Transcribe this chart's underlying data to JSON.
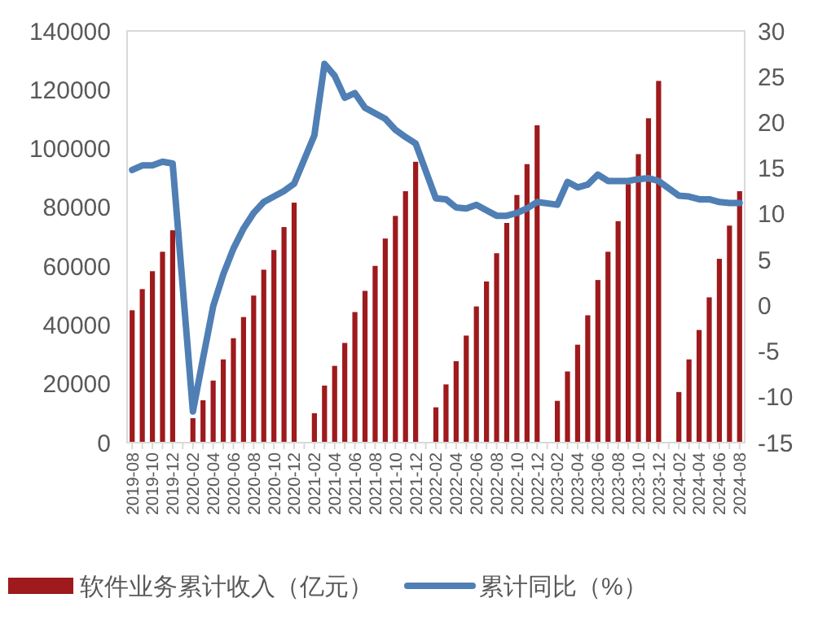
{
  "chart_data": {
    "type": "bar",
    "categories": [
      "2019-08",
      null,
      "2019-10",
      null,
      "2019-12",
      null,
      "2020-02",
      null,
      "2020-04",
      null,
      "2020-06",
      null,
      "2020-08",
      null,
      "2020-10",
      null,
      "2020-12",
      null,
      "2021-02",
      null,
      "2021-04",
      null,
      "2021-06",
      null,
      "2021-08",
      null,
      "2021-10",
      null,
      "2021-12",
      null,
      "2022-02",
      null,
      "2022-04",
      null,
      "2022-06",
      null,
      "2022-08",
      null,
      "2022-10",
      null,
      "2022-12",
      null,
      "2023-02",
      null,
      "2023-04",
      null,
      "2023-06",
      null,
      "2023-08",
      null,
      "2023-10",
      null,
      "2023-12",
      null,
      "2024-02",
      null,
      "2024-04",
      null,
      "2024-06",
      null,
      "2024-08"
    ],
    "series": [
      {
        "name": "软件业务累计收入（亿元）",
        "color": "#9e1a1d",
        "values": [
          45000,
          52200,
          58300,
          64900,
          72200,
          null,
          8300,
          14400,
          21100,
          28300,
          35500,
          42700,
          50000,
          58800,
          65500,
          73300,
          81600,
          null,
          10000,
          19400,
          26100,
          33900,
          44400,
          51600,
          60100,
          69400,
          77100,
          85500,
          95500,
          null,
          12000,
          19800,
          27700,
          36400,
          46300,
          54800,
          64400,
          74700,
          84200,
          94700,
          107900,
          null,
          14200,
          24200,
          33300,
          43300,
          55300,
          64900,
          75300,
          87900,
          98100,
          110300,
          123000,
          null,
          17200,
          28300,
          38300,
          49400,
          62500,
          73800,
          85500
        ]
      },
      {
        "name": "累计同比（%）",
        "type": "line",
        "axis": "y2",
        "color": "#4f7fb4",
        "values": [
          14.8,
          15.3,
          15.3,
          15.7,
          15.5,
          null,
          -11.6,
          -5.8,
          -0.1,
          3.4,
          6.2,
          8.4,
          10.1,
          11.3,
          11.9,
          12.5,
          13.3,
          null,
          18.6,
          26.4,
          25.1,
          22.7,
          23.2,
          21.6,
          21.0,
          20.4,
          19.2,
          18.4,
          17.7,
          null,
          11.7,
          11.6,
          10.7,
          10.6,
          11.0,
          10.4,
          9.8,
          9.8,
          10.1,
          10.6,
          11.3,
          null,
          11.0,
          13.5,
          12.9,
          13.2,
          14.3,
          13.6,
          13.6,
          13.6,
          13.8,
          13.9,
          13.6,
          null,
          12.0,
          11.9,
          11.6,
          11.6,
          11.3,
          11.2,
          11.2
        ]
      }
    ],
    "ylim": [
      0,
      140000
    ],
    "yticks": [
      0,
      20000,
      40000,
      60000,
      80000,
      100000,
      120000,
      140000
    ],
    "y2lim": [
      -15,
      30
    ],
    "y2ticks": [
      -15,
      -10,
      -5,
      0,
      5,
      10,
      15,
      20,
      25,
      30
    ],
    "legend": "bottom",
    "grid": false
  }
}
